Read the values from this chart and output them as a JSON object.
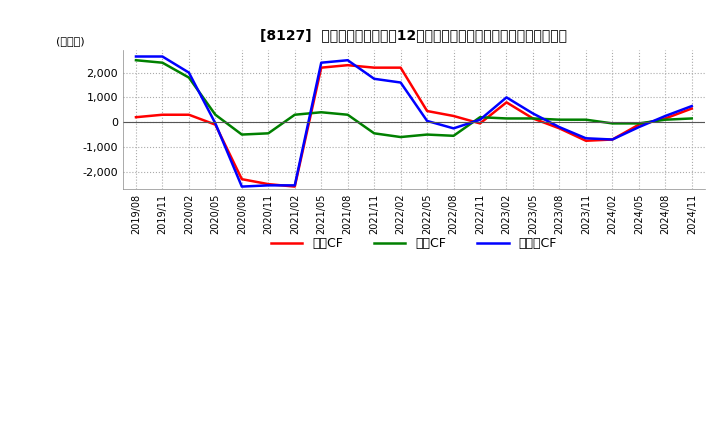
{
  "title": "[8127]  キャッシュフローの12か月移動合計の対前年同期増減額の推移",
  "ylabel": "(百万円)",
  "ylim": [
    -2700,
    2900
  ],
  "yticks": [
    -2000,
    -1000,
    0,
    1000,
    2000
  ],
  "background_color": "#ffffff",
  "grid_color": "#aaaaaa",
  "x_labels": [
    "2019/08",
    "2019/11",
    "2020/02",
    "2020/05",
    "2020/08",
    "2020/11",
    "2021/02",
    "2021/05",
    "2021/08",
    "2021/11",
    "2022/02",
    "2022/05",
    "2022/08",
    "2022/11",
    "2023/02",
    "2023/05",
    "2023/08",
    "2023/11",
    "2024/02",
    "2024/05",
    "2024/08",
    "2024/11"
  ],
  "operating_cf": [
    200,
    300,
    300,
    -100,
    -2300,
    -2500,
    -2600,
    2200,
    2300,
    2200,
    2200,
    450,
    250,
    -50,
    800,
    150,
    -250,
    -750,
    -700,
    -100,
    150,
    550
  ],
  "investing_cf": [
    2500,
    2400,
    1800,
    300,
    -500,
    -450,
    300,
    400,
    300,
    -450,
    -600,
    -500,
    -550,
    200,
    150,
    150,
    100,
    100,
    -50,
    -50,
    100,
    150
  ],
  "free_cf": [
    2650,
    2650,
    2000,
    -50,
    -2600,
    -2550,
    -2550,
    2400,
    2500,
    1750,
    1600,
    50,
    -250,
    100,
    1000,
    350,
    -200,
    -650,
    -700,
    -200,
    250,
    650
  ],
  "colors": {
    "operating": "#ff0000",
    "investing": "#008000",
    "free": "#0000ff"
  },
  "legend_labels": [
    "営業CF",
    "投資CF",
    "フリーCF"
  ]
}
